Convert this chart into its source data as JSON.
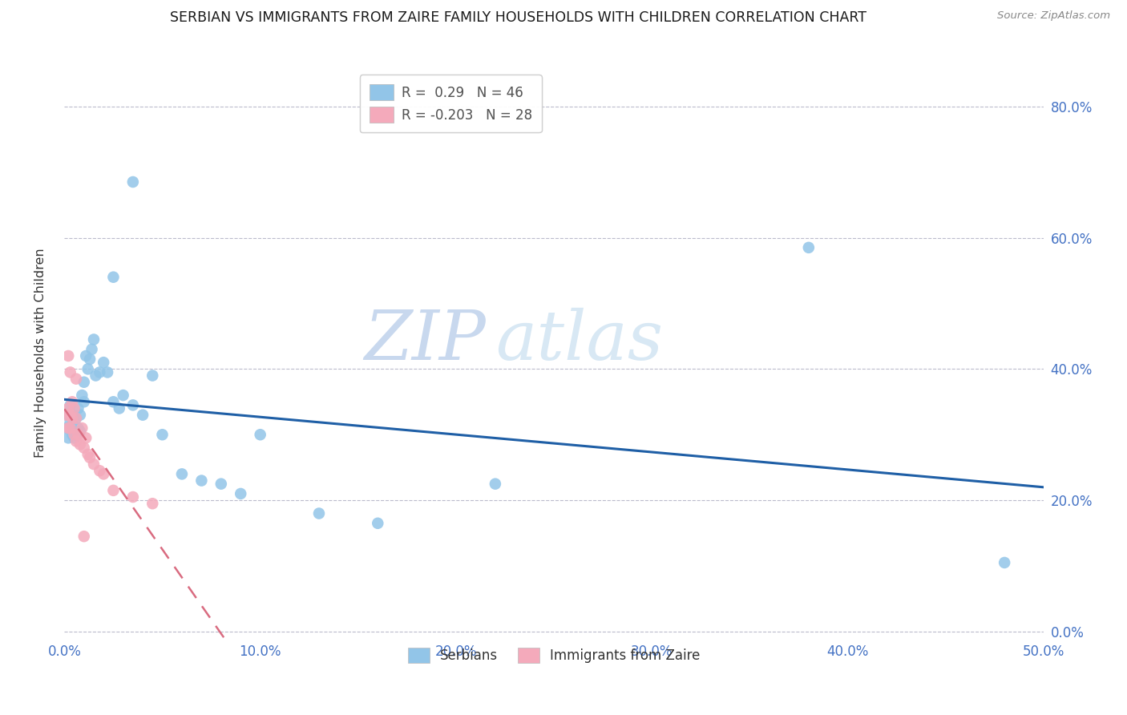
{
  "title": "SERBIAN VS IMMIGRANTS FROM ZAIRE FAMILY HOUSEHOLDS WITH CHILDREN CORRELATION CHART",
  "source": "Source: ZipAtlas.com",
  "ylabel": "Family Households with Children",
  "label_serbian": "Serbians",
  "label_zaire": "Immigrants from Zaire",
  "r_serbian": 0.29,
  "n_serbian": 46,
  "r_zaire": -0.203,
  "n_zaire": 28,
  "xlim": [
    0.0,
    0.5
  ],
  "ylim": [
    -0.01,
    0.86
  ],
  "xtick_vals": [
    0.0,
    0.1,
    0.2,
    0.3,
    0.4,
    0.5
  ],
  "ytick_vals": [
    0.0,
    0.2,
    0.4,
    0.6,
    0.8
  ],
  "serbian_color": "#92C5E8",
  "serbian_line_color": "#1F5FA6",
  "zaire_color": "#F4AABB",
  "zaire_line_color": "#D96B80",
  "watermark_zip": "ZIP",
  "watermark_atlas": "atlas",
  "serbian_x": [
    0.001,
    0.002,
    0.002,
    0.003,
    0.003,
    0.004,
    0.004,
    0.005,
    0.005,
    0.006,
    0.006,
    0.007,
    0.007,
    0.008,
    0.008,
    0.009,
    0.01,
    0.01,
    0.011,
    0.012,
    0.013,
    0.014,
    0.015,
    0.016,
    0.018,
    0.02,
    0.022,
    0.025,
    0.028,
    0.03,
    0.035,
    0.04,
    0.045,
    0.05,
    0.06,
    0.07,
    0.08,
    0.09,
    0.1,
    0.13,
    0.025,
    0.48,
    0.38,
    0.22,
    0.16,
    0.035
  ],
  "serbian_y": [
    0.31,
    0.295,
    0.33,
    0.32,
    0.345,
    0.3,
    0.315,
    0.295,
    0.33,
    0.325,
    0.3,
    0.34,
    0.31,
    0.305,
    0.33,
    0.36,
    0.38,
    0.35,
    0.42,
    0.4,
    0.415,
    0.43,
    0.445,
    0.39,
    0.395,
    0.41,
    0.395,
    0.35,
    0.34,
    0.36,
    0.345,
    0.33,
    0.39,
    0.3,
    0.24,
    0.23,
    0.225,
    0.21,
    0.3,
    0.18,
    0.54,
    0.105,
    0.585,
    0.225,
    0.165,
    0.685
  ],
  "zaire_x": [
    0.001,
    0.002,
    0.002,
    0.003,
    0.003,
    0.004,
    0.004,
    0.005,
    0.005,
    0.006,
    0.006,
    0.007,
    0.008,
    0.009,
    0.01,
    0.011,
    0.012,
    0.013,
    0.015,
    0.018,
    0.02,
    0.025,
    0.035,
    0.045,
    0.002,
    0.003,
    0.006,
    0.01
  ],
  "zaire_y": [
    0.33,
    0.31,
    0.34,
    0.33,
    0.31,
    0.35,
    0.325,
    0.34,
    0.3,
    0.325,
    0.29,
    0.3,
    0.285,
    0.31,
    0.28,
    0.295,
    0.27,
    0.265,
    0.255,
    0.245,
    0.24,
    0.215,
    0.205,
    0.195,
    0.42,
    0.395,
    0.385,
    0.145
  ]
}
